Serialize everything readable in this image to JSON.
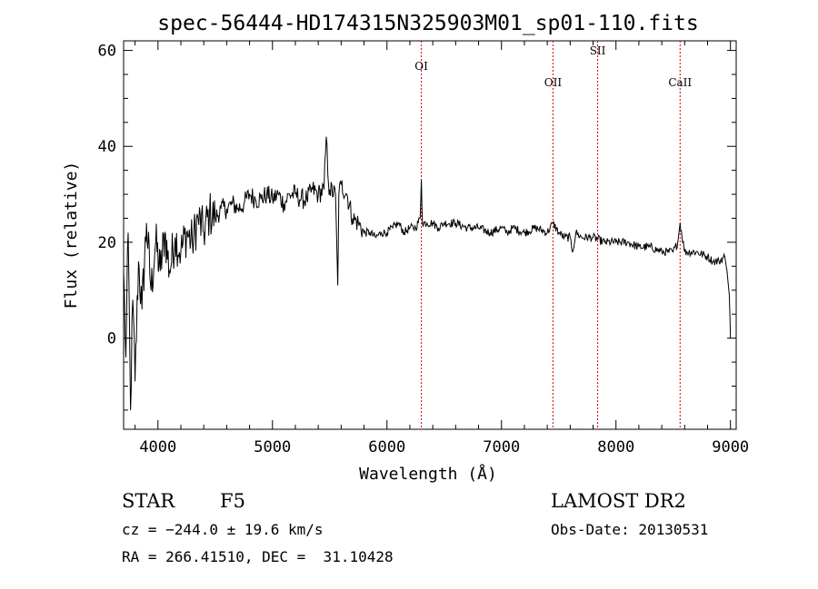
{
  "chart_data": {
    "type": "line",
    "title": "spec-56444-HD174315N325903M01_sp01-110.fits",
    "xlabel": "Wavelength (Å)",
    "ylabel": "Flux (relative)",
    "xlim": [
      3700,
      9050
    ],
    "ylim": [
      -19,
      62
    ],
    "xticks": [
      4000,
      5000,
      6000,
      7000,
      8000,
      9000
    ],
    "yticks": [
      0,
      20,
      40,
      60
    ],
    "grid": false,
    "line_color": "#000000",
    "marker_color": "#cc0000",
    "series": [
      {
        "x": [
          3700,
          3720,
          3740,
          3760,
          3780,
          3800,
          3830,
          3860,
          3900,
          3940,
          3980,
          4020,
          4060,
          4100,
          4150,
          4200,
          4250,
          4300,
          4350,
          4400,
          4450,
          4500,
          4550,
          4600,
          4650,
          4700,
          4750,
          4800,
          4850,
          4900,
          4950,
          5000,
          5050,
          5100,
          5150,
          5200,
          5250,
          5300,
          5350,
          5400,
          5450,
          5470,
          5490,
          5500,
          5550,
          5570,
          5580,
          5600,
          5650,
          5700,
          5750,
          5800,
          5850,
          5900,
          5950,
          6000,
          6050,
          6100,
          6150,
          6200,
          6250,
          6290,
          6300,
          6310,
          6350,
          6400,
          6450,
          6500,
          6600,
          6700,
          6800,
          6900,
          7000,
          7050,
          7100,
          7200,
          7300,
          7400,
          7450,
          7500,
          7550,
          7600,
          7620,
          7650,
          7700,
          7800,
          7900,
          8000,
          8100,
          8200,
          8300,
          8400,
          8450,
          8500,
          8540,
          8560,
          8600,
          8700,
          8800,
          8850,
          8900,
          8950,
          8970,
          8990,
          9000
        ],
        "y": [
          14,
          -4,
          22,
          -15,
          8,
          -9,
          16,
          6,
          24,
          10,
          20,
          14,
          22,
          14,
          21,
          18,
          22,
          20,
          25,
          22,
          26,
          25,
          27,
          27,
          28,
          27,
          28,
          30,
          29,
          29,
          30,
          29,
          30,
          28,
          30,
          30,
          29,
          29,
          31,
          30,
          31,
          42,
          32,
          31,
          30,
          11,
          30,
          32,
          30,
          25,
          24,
          22,
          22,
          21,
          22,
          22,
          23,
          24,
          22,
          23,
          23,
          25,
          33,
          24,
          24,
          24,
          23,
          24,
          24,
          23,
          23,
          22,
          23,
          22,
          23,
          22,
          23,
          22,
          24,
          22,
          21,
          21,
          18,
          22,
          21,
          21,
          20,
          20,
          20,
          19,
          19,
          18,
          18,
          18,
          20,
          24,
          18,
          18,
          17,
          16,
          16,
          17,
          14,
          9,
          0
        ]
      }
    ],
    "lines": [
      {
        "label": "OI",
        "x": 6300
      },
      {
        "label": "OII",
        "x": 7450
      },
      {
        "label": "SII",
        "x": 7840
      },
      {
        "label": "CaII",
        "x": 8560
      }
    ]
  },
  "info": {
    "object_type": "STAR",
    "subclass": "F5",
    "survey": "LAMOST DR2",
    "cz": "cz = −244.0 ± 19.6 km/s",
    "obs_date": "Obs-Date: 20130531",
    "coords": "RA = 266.41510, DEC =  31.10428"
  }
}
